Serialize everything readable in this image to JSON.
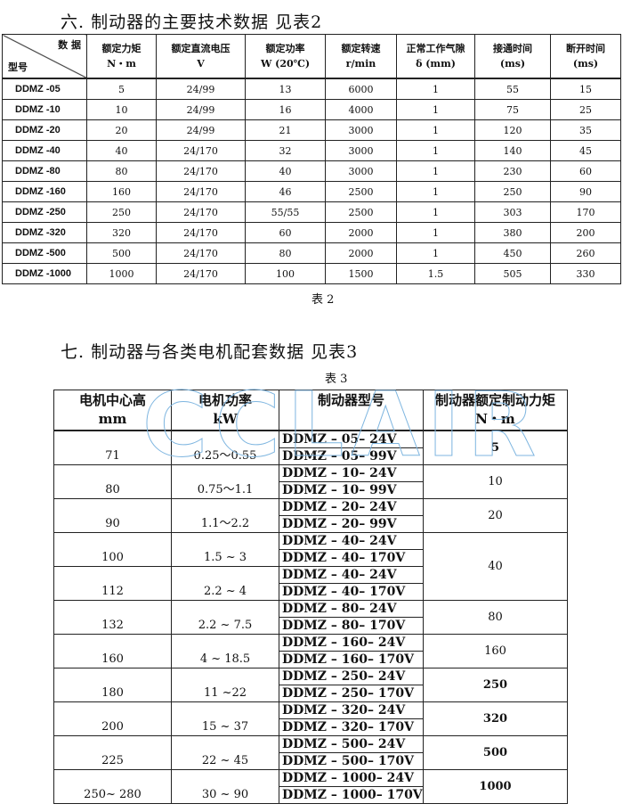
{
  "section6": {
    "title": "六.   制动器的主要技术数据  见表2",
    "caption": "表  2"
  },
  "table2": {
    "corner_top": "数 据",
    "corner_bottom": "型号",
    "headers": [
      [
        "额定力矩",
        "N・m"
      ],
      [
        "额定直流电压",
        "V"
      ],
      [
        "额定功率",
        "W (20℃)"
      ],
      [
        "额定转速",
        "r/min"
      ],
      [
        "正常工作气隙",
        "δ (mm)"
      ],
      [
        "接通时间",
        "(ms)"
      ],
      [
        "断开时间",
        "(ms)"
      ]
    ],
    "rows": [
      [
        "DDMZ -05",
        "5",
        "24/99",
        "13",
        "6000",
        "1",
        "55",
        "15"
      ],
      [
        "DDMZ -10",
        "10",
        "24/99",
        "16",
        "4000",
        "1",
        "75",
        "25"
      ],
      [
        "DDMZ -20",
        "20",
        "24/99",
        "21",
        "3000",
        "1",
        "120",
        "35"
      ],
      [
        "DDMZ -40",
        "40",
        "24/170",
        "32",
        "3000",
        "1",
        "140",
        "45"
      ],
      [
        "DDMZ -80",
        "80",
        "24/170",
        "40",
        "3000",
        "1",
        "230",
        "60"
      ],
      [
        "DDMZ -160",
        "160",
        "24/170",
        "46",
        "2500",
        "1",
        "250",
        "90"
      ],
      [
        "DDMZ -250",
        "250",
        "24/170",
        "55/55",
        "2500",
        "1",
        "303",
        "170"
      ],
      [
        "DDMZ -320",
        "320",
        "24/170",
        "60",
        "2000",
        "1",
        "380",
        "200"
      ],
      [
        "DDMZ -500",
        "500",
        "24/170",
        "80",
        "2000",
        "1",
        "450",
        "260"
      ],
      [
        "DDMZ -1000",
        "1000",
        "24/170",
        "100",
        "1500",
        "1.5",
        "505",
        "330"
      ]
    ]
  },
  "section7": {
    "title": "七.   制动器与各类电机配套数据  见表3",
    "caption": "表  3"
  },
  "watermark": "CCLAIR",
  "table3": {
    "headers": [
      [
        "电机中心高",
        "mm"
      ],
      [
        "电机功率",
        "kW"
      ],
      [
        "制动器型号",
        ""
      ],
      [
        "制动器额定制动力矩",
        "N・m"
      ]
    ],
    "groups": [
      {
        "height": "71",
        "power": "0.25〜0.55",
        "models": [
          "DDMZ – 05– 24V",
          "DDMZ – 05– 99V"
        ],
        "torque": "5",
        "bold": true,
        "span": 1
      },
      {
        "height": "80",
        "power": "0.75〜1.1",
        "models": [
          "DDMZ – 10– 24V",
          "DDMZ – 10– 99V"
        ],
        "torque": "10",
        "bold": false,
        "span": 1
      },
      {
        "height": "90",
        "power": "1.1〜2.2",
        "models": [
          "DDMZ – 20– 24V",
          "DDMZ – 20– 99V"
        ],
        "torque": "20",
        "bold": false,
        "span": 1
      },
      {
        "height": "100",
        "power": "1.5 ~ 3",
        "models": [
          "DDMZ – 40– 24V",
          "DDMZ – 40– 170V"
        ],
        "torque": "40",
        "bold": false,
        "span": 2
      },
      {
        "height": "112",
        "power": "2.2 ~ 4",
        "models": [
          "DDMZ – 40– 24V",
          "DDMZ – 40– 170V"
        ],
        "torque": null,
        "span": 0
      },
      {
        "height": "132",
        "power": "2.2 ~ 7.5",
        "models": [
          "DDMZ – 80– 24V",
          "DDMZ – 80– 170V"
        ],
        "torque": "80",
        "bold": false,
        "span": 1
      },
      {
        "height": "160",
        "power": "4 ~ 18.5",
        "models": [
          "DDMZ – 160– 24V",
          "DDMZ – 160– 170V"
        ],
        "torque": "160",
        "bold": false,
        "span": 1
      },
      {
        "height": "180",
        "power": "11 ~22",
        "models": [
          "DDMZ – 250– 24V",
          "DDMZ – 250– 170V"
        ],
        "torque": "250",
        "bold": true,
        "span": 1
      },
      {
        "height": "200",
        "power": "15 ~ 37",
        "models": [
          "DDMZ – 320– 24V",
          "DDMZ – 320– 170V"
        ],
        "torque": "320",
        "bold": true,
        "span": 1
      },
      {
        "height": "225",
        "power": "22 ~ 45",
        "models": [
          "DDMZ – 500– 24V",
          "DDMZ – 500– 170V"
        ],
        "torque": "500",
        "bold": true,
        "span": 1
      },
      {
        "height": "250~ 280",
        "power": "30 ~ 90",
        "models": [
          "DDMZ – 1000– 24V",
          "DDMZ – 1000– 170V"
        ],
        "torque": "1000",
        "bold": true,
        "span": 1
      }
    ]
  }
}
